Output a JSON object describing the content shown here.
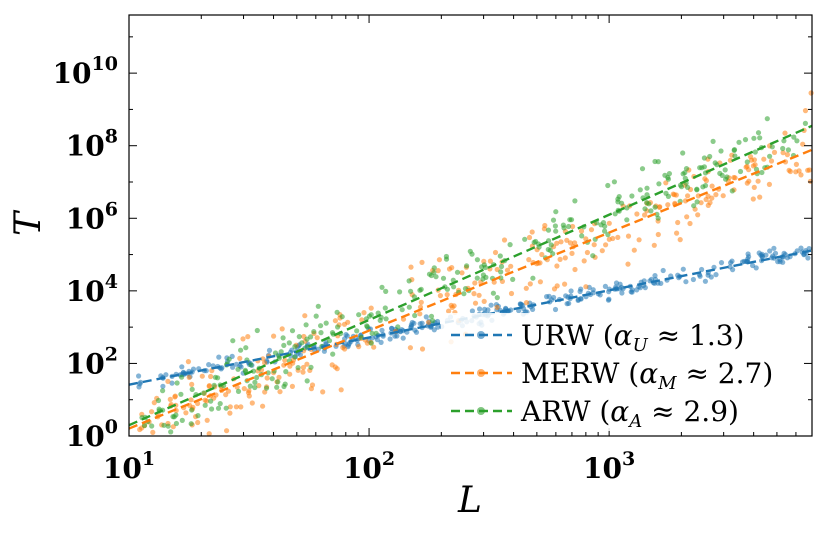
{
  "chart_data": {
    "type": "scatter",
    "xlabel": "L",
    "ylabel": "T",
    "xscale": "log",
    "yscale": "log",
    "xlim": [
      10,
      7000
    ],
    "ylim": [
      1,
      400000000000
    ],
    "xticks": [
      {
        "value": 10,
        "base": "10",
        "exp": "1"
      },
      {
        "value": 100,
        "base": "10",
        "exp": "2"
      },
      {
        "value": 1000,
        "base": "10",
        "exp": "3"
      }
    ],
    "yticks": [
      {
        "value": 1,
        "base": "10",
        "exp": "0"
      },
      {
        "value": 100,
        "base": "10",
        "exp": "2"
      },
      {
        "value": 10000,
        "base": "10",
        "exp": "4"
      },
      {
        "value": 1000000,
        "base": "10",
        "exp": "6"
      },
      {
        "value": 100000000,
        "base": "10",
        "exp": "8"
      },
      {
        "value": 10000000000,
        "base": "10",
        "exp": "10"
      }
    ],
    "legend_position": "lower-right",
    "series": [
      {
        "name": "URW",
        "legend_prefix": "URW (",
        "alpha_sub": "U",
        "legend_suffix": " ≈ 1.3)",
        "color": "#1f77b4",
        "fit": {
          "coef": 1.3,
          "exponent": 1.3
        },
        "scatter": {
          "n": 320,
          "spread": 0.22,
          "seed": 11
        }
      },
      {
        "name": "MERW",
        "legend_prefix": "MERW (",
        "alpha_sub": "M",
        "legend_suffix": " ≈ 2.7)",
        "color": "#ff7f0e",
        "fit": {
          "coef": 0.0032,
          "exponent": 2.7
        },
        "scatter": {
          "n": 330,
          "spread": 1.05,
          "seed": 23
        }
      },
      {
        "name": "ARW",
        "legend_prefix": "ARW (",
        "alpha_sub": "A",
        "legend_suffix": " ≈ 2.9)",
        "color": "#2ca02c",
        "fit": {
          "coef": 0.0025,
          "exponent": 2.9
        },
        "scatter": {
          "n": 300,
          "spread": 0.85,
          "seed": 37
        }
      }
    ]
  }
}
